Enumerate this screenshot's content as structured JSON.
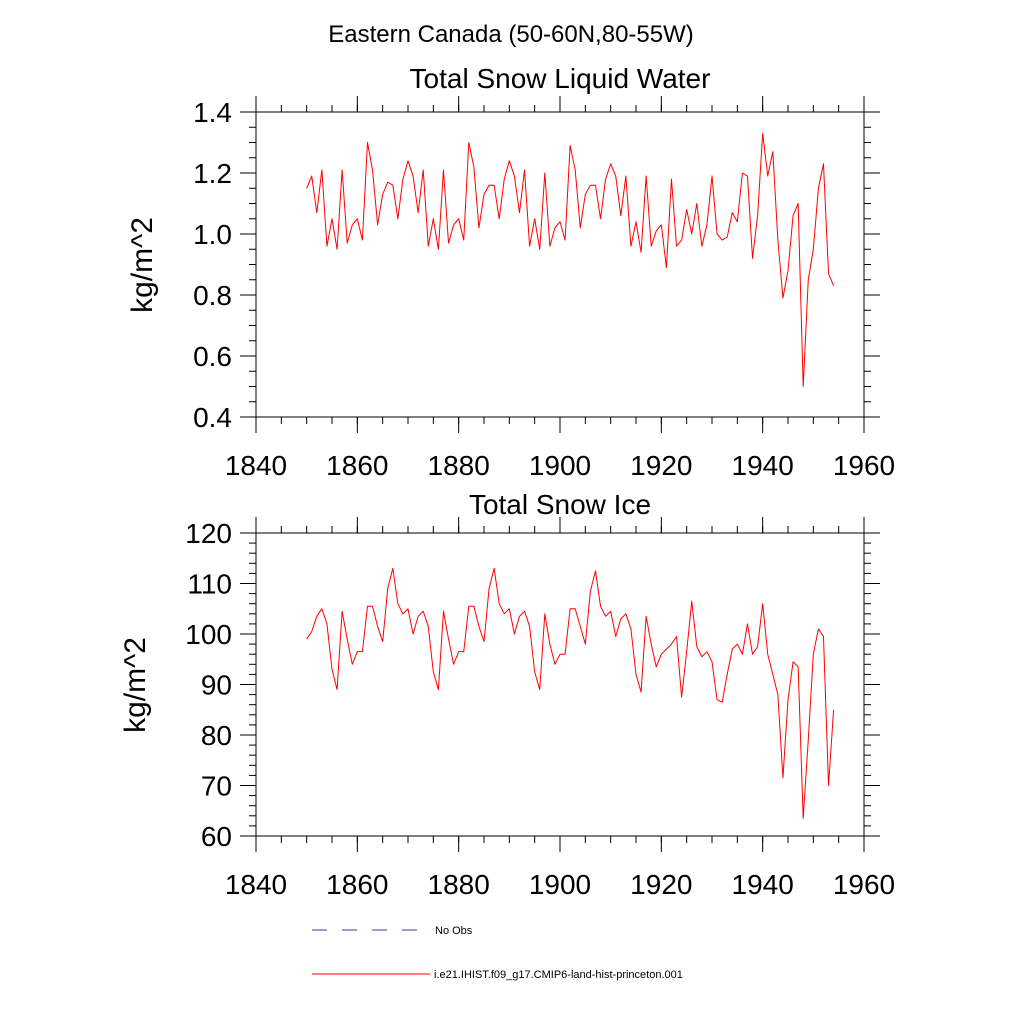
{
  "figure_title": "Eastern Canada (50-60N,80-55W)",
  "legend": {
    "entries": [
      {
        "label": "No Obs",
        "color": "#3a3aa0",
        "dash": "dashed"
      },
      {
        "label": "i.e21.IHIST.f09_g17.CMIP6-land-hist-princeton.001",
        "color": "#ff0000",
        "dash": "solid"
      }
    ]
  },
  "chart_data": [
    {
      "type": "line",
      "title": "Total Snow Liquid Water",
      "xlabel": "",
      "ylabel": "kg/m^2",
      "xlim": [
        1840,
        1960
      ],
      "ylim": [
        0.4,
        1.4
      ],
      "xticks": [
        1840,
        1860,
        1880,
        1900,
        1920,
        1940,
        1960
      ],
      "yticks": [
        0.4,
        0.6,
        0.8,
        1.0,
        1.2,
        1.4
      ],
      "ytick_labels": [
        "0.4",
        "0.6",
        "0.8",
        "1.0",
        "1.2",
        "1.4"
      ],
      "x_minor_step": 5,
      "y_minor_step": 0.05,
      "grid": false,
      "series": [
        {
          "color": "#ff0000",
          "x_start": 1850,
          "values": [
            1.15,
            1.19,
            1.07,
            1.21,
            0.96,
            1.05,
            0.95,
            1.21,
            0.97,
            1.03,
            1.05,
            0.98,
            1.3,
            1.21,
            1.03,
            1.13,
            1.17,
            1.16,
            1.05,
            1.18,
            1.24,
            1.19,
            1.07,
            1.21,
            0.96,
            1.05,
            0.95,
            1.21,
            0.97,
            1.03,
            1.05,
            0.98,
            1.3,
            1.22,
            1.02,
            1.13,
            1.16,
            1.16,
            1.05,
            1.18,
            1.24,
            1.19,
            1.07,
            1.21,
            0.96,
            1.05,
            0.95,
            1.2,
            0.96,
            1.02,
            1.04,
            0.98,
            1.29,
            1.21,
            1.02,
            1.13,
            1.16,
            1.16,
            1.05,
            1.18,
            1.23,
            1.19,
            1.06,
            1.19,
            0.96,
            1.04,
            0.94,
            1.19,
            0.96,
            1.01,
            1.03,
            0.89,
            1.18,
            0.96,
            0.98,
            1.08,
            1.0,
            1.1,
            0.96,
            1.03,
            1.19,
            1.0,
            0.98,
            0.99,
            1.07,
            1.04,
            1.2,
            1.19,
            0.92,
            1.06,
            1.33,
            1.19,
            1.27,
            0.98,
            0.79,
            0.88,
            1.06,
            1.1,
            0.5,
            0.85,
            0.95,
            1.15,
            1.23,
            0.87,
            0.83
          ]
        }
      ]
    },
    {
      "type": "line",
      "title": "Total Snow Ice",
      "xlabel": "",
      "ylabel": "kg/m^2",
      "xlim": [
        1840,
        1960
      ],
      "ylim": [
        60,
        120
      ],
      "xticks": [
        1840,
        1860,
        1880,
        1900,
        1920,
        1940,
        1960
      ],
      "yticks": [
        60,
        70,
        80,
        90,
        100,
        110,
        120
      ],
      "ytick_labels": [
        "60",
        "70",
        "80",
        "90",
        "100",
        "110",
        "120"
      ],
      "x_minor_step": 5,
      "y_minor_step": 2,
      "grid": false,
      "series": [
        {
          "color": "#ff0000",
          "x_start": 1850,
          "values": [
            99,
            100.5,
            103.5,
            105,
            102,
            93,
            89,
            104.5,
            99,
            94,
            96.5,
            96.5,
            105.5,
            105.5,
            101.5,
            98.5,
            109,
            113,
            106,
            104,
            105,
            100,
            103.5,
            104.5,
            101.5,
            92.5,
            89,
            104.5,
            99,
            94,
            96.5,
            96.5,
            105.5,
            105.5,
            101.5,
            98.5,
            109,
            113,
            106,
            104,
            105,
            100,
            103.5,
            104.5,
            101.5,
            92.5,
            89,
            104,
            98,
            94,
            96,
            96,
            105,
            105,
            101.5,
            98,
            108.5,
            112.5,
            105.5,
            103.5,
            104.5,
            99.5,
            103,
            104,
            101,
            92,
            88.5,
            103.5,
            98,
            93.5,
            96,
            97,
            98,
            99.5,
            87.5,
            96.5,
            106.5,
            97.5,
            95.5,
            96.5,
            94.5,
            87,
            86.5,
            92,
            97,
            98,
            96,
            102,
            96,
            97.5,
            106,
            96,
            92,
            88,
            71.5,
            87,
            94.5,
            93.5,
            63.5,
            79,
            96,
            101,
            99.5,
            70,
            85
          ]
        }
      ]
    }
  ]
}
